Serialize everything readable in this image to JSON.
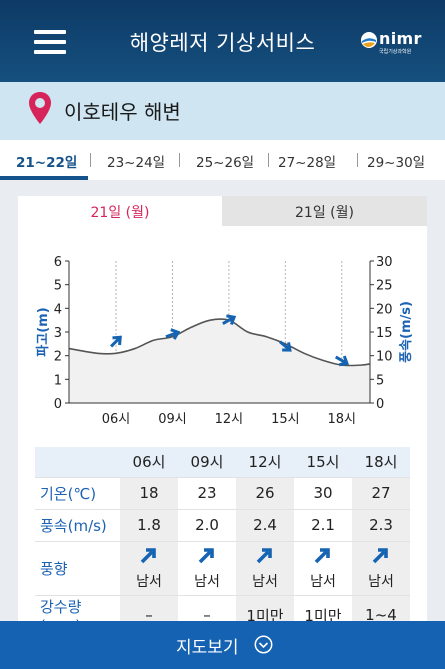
{
  "header": {
    "title": "해양레저 기상서비스",
    "logo_text": "nimr",
    "logo_subtext": "국립기상과학원"
  },
  "location": {
    "name": "이호테우 해변"
  },
  "date_tabs": [
    "21~22일",
    "23~24일",
    "25~26일",
    "27~28일",
    "29~30일"
  ],
  "day_tabs": [
    "21일 (월)",
    "21일 (월)"
  ],
  "chart_data": {
    "type": "line",
    "x_ticks": [
      "06시",
      "09시",
      "12시",
      "15시",
      "18시"
    ],
    "left_axis": {
      "label": "파고(m)",
      "ylim": [
        0,
        6
      ],
      "ticks": [
        "0",
        "1",
        "2",
        "3",
        "4",
        "5",
        "6"
      ]
    },
    "right_axis": {
      "label": "풍속(m/s)",
      "ylim": [
        0,
        30
      ],
      "ticks": [
        "0",
        "5",
        "10",
        "15",
        "20",
        "25",
        "30"
      ]
    },
    "series": [
      {
        "x": [
          3.5,
          5,
          6,
          7,
          8,
          9,
          10,
          11,
          12,
          13,
          14,
          15,
          16,
          17,
          18,
          19,
          19.5
        ],
        "values": [
          2.3,
          2.1,
          2.1,
          2.3,
          2.65,
          2.8,
          3.2,
          3.5,
          3.5,
          3.0,
          2.8,
          2.5,
          2.1,
          1.8,
          1.6,
          1.6,
          1.65
        ]
      }
    ],
    "wind_arrows_x": [
      6,
      9,
      12,
      15,
      18
    ],
    "wind_arrows_y": [
      2.6,
      2.9,
      3.5,
      2.4,
      1.8
    ],
    "colors": {
      "axis_label": "#1d63b4",
      "line": "#555555",
      "fill": "#f1f1f1",
      "arrow": "#1563b3"
    }
  },
  "table": {
    "headers": [
      "06시",
      "09시",
      "12시",
      "15시",
      "18시"
    ],
    "rows": {
      "temp": {
        "label": "기온(℃)",
        "values": [
          "18",
          "23",
          "26",
          "30",
          "27"
        ]
      },
      "wind_speed": {
        "label": "풍속(m/s)",
        "values": [
          "1.8",
          "2.0",
          "2.4",
          "2.1",
          "2.3"
        ]
      },
      "wind_dir": {
        "label": "풍향",
        "values": [
          "남서",
          "남서",
          "남서",
          "남서",
          "남서"
        ]
      },
      "rain": {
        "label": "강수량(mm)",
        "values": [
          "–",
          "–",
          "1미만",
          "1미만",
          "1~4"
        ]
      }
    }
  },
  "bottom_bar": {
    "label": "지도보기"
  }
}
